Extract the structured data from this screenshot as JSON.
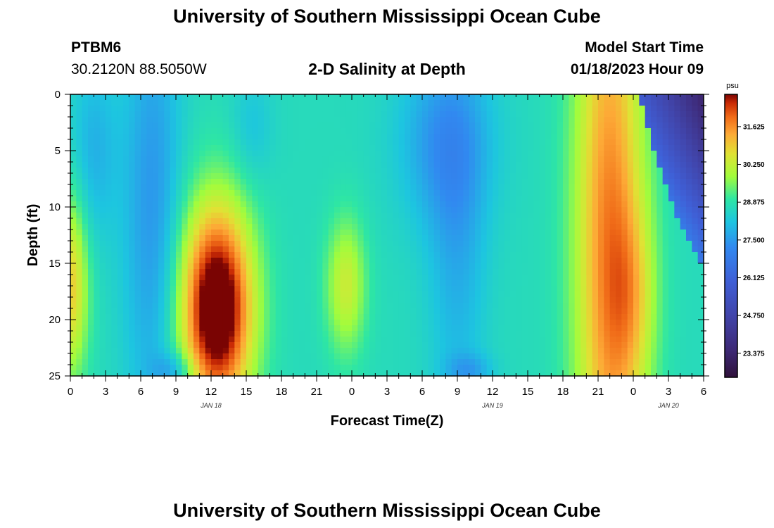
{
  "header": {
    "title": "University of Southern Mississippi Ocean Cube",
    "station_id": "PTBM6",
    "coordinates": "30.2120N  88.5050W",
    "plot_title": "2-D Salinity at Depth",
    "model_start_label": "Model Start Time",
    "model_start_value": "01/18/2023 Hour 09"
  },
  "footer": {
    "title": "University of Southern Mississippi Ocean Cube"
  },
  "colors": {
    "background": "#ffffff",
    "text": "#000000"
  },
  "chart_data": {
    "type": "heatmap",
    "title": "2-D Salinity at Depth",
    "xlabel": "Forecast Time(Z)",
    "ylabel": "Depth (ft)",
    "x_ticks": [
      "0",
      "3",
      "6",
      "9",
      "12",
      "15",
      "18",
      "21",
      "0",
      "3",
      "6",
      "9",
      "12",
      "15",
      "18",
      "21",
      "0",
      "3",
      "6"
    ],
    "x_range_hours": [
      0,
      54
    ],
    "date_labels": [
      {
        "label": "JAN 18",
        "hour": 12
      },
      {
        "label": "JAN 19",
        "hour": 36
      },
      {
        "label": "JAN 20",
        "hour": 51
      }
    ],
    "y_ticks": [
      "0",
      "5",
      "10",
      "15",
      "20",
      "25"
    ],
    "y_range": [
      0,
      25
    ],
    "colorbar": {
      "unit": "psu",
      "ticks": [
        "31.625",
        "30.250",
        "28.875",
        "27.500",
        "26.125",
        "24.750",
        "23.375"
      ],
      "tick_values": [
        31.625,
        30.25,
        28.875,
        27.5,
        26.125,
        24.75,
        23.375
      ],
      "vmin": 22.5,
      "vmax": 32.8
    },
    "grid": false
  }
}
